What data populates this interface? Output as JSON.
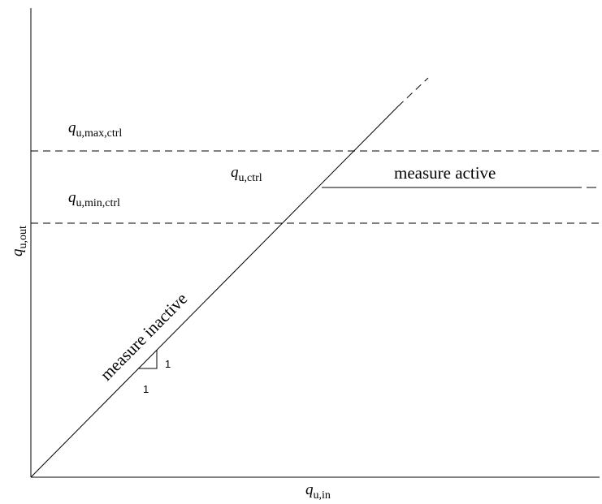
{
  "labels": {
    "x_axis": {
      "main": "q",
      "sub": "u,in"
    },
    "y_axis": {
      "main": "q",
      "sub": "u,out"
    },
    "max_ctrl": {
      "main": "q",
      "sub": "u,max,ctrl"
    },
    "min_ctrl": {
      "main": "q",
      "sub": "u,min,ctrl"
    },
    "ctrl": {
      "main": "q",
      "sub": "u,ctrl"
    },
    "measure_active": "measure active",
    "measure_inactive": "measure inactive",
    "slope_run": "1",
    "slope_rise": "1"
  }
}
